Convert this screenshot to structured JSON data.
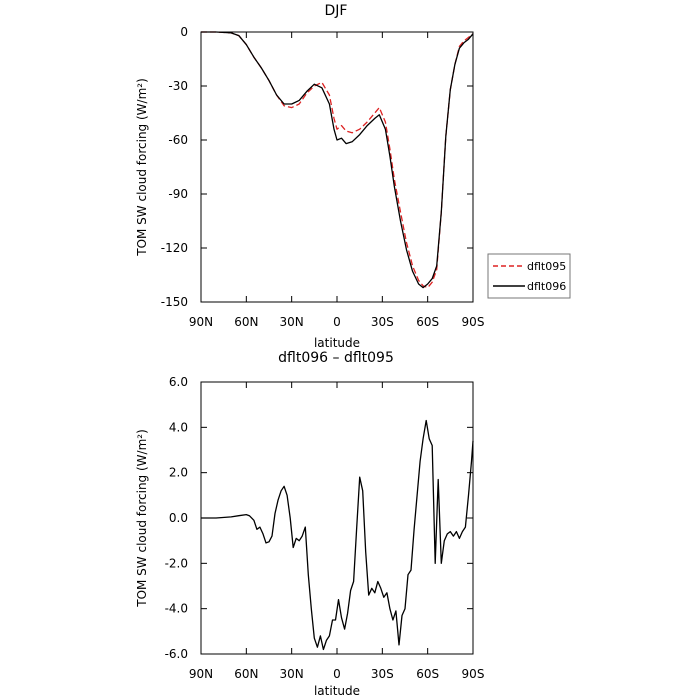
{
  "chart_data": [
    {
      "type": "line",
      "title": "DJF",
      "xlabel": "latitude",
      "ylabel": "TOM SW cloud forcing (W/m²)",
      "xlim": [
        90,
        -90
      ],
      "ylim": [
        -150,
        0
      ],
      "xticks": [
        {
          "value": 90,
          "label": "90N"
        },
        {
          "value": 60,
          "label": "60N"
        },
        {
          "value": 30,
          "label": "30N"
        },
        {
          "value": 0,
          "label": "0"
        },
        {
          "value": -30,
          "label": "30S"
        },
        {
          "value": -60,
          "label": "60S"
        },
        {
          "value": -90,
          "label": "90S"
        }
      ],
      "yticks": [
        {
          "value": 0,
          "label": "0"
        },
        {
          "value": -30,
          "label": "-30"
        },
        {
          "value": -60,
          "label": "-60"
        },
        {
          "value": -90,
          "label": "-90"
        },
        {
          "value": -120,
          "label": "-120"
        },
        {
          "value": -150,
          "label": "-150"
        }
      ],
      "legend": {
        "position": "right",
        "entries": [
          "dflt095",
          "dflt096"
        ]
      },
      "grid": false,
      "series": [
        {
          "name": "dflt095",
          "color": "#dd2222",
          "dash": "dashed",
          "x": [
            90,
            80,
            70,
            65,
            60,
            55,
            50,
            45,
            40,
            35,
            30,
            25,
            20,
            15,
            10,
            5,
            2,
            0,
            -3,
            -6,
            -10,
            -15,
            -20,
            -25,
            -28,
            -32,
            -35,
            -38,
            -42,
            -46,
            -50,
            -54,
            -57,
            -60,
            -63,
            -66,
            -69,
            -72,
            -75,
            -78,
            -81,
            -84,
            -87,
            -90
          ],
          "y": [
            0,
            0,
            -0.5,
            -2,
            -7,
            -14,
            -20,
            -27,
            -35,
            -41,
            -42,
            -40,
            -34,
            -30,
            -28,
            -35,
            -48,
            -54,
            -52,
            -55,
            -56,
            -54,
            -50,
            -45,
            -42,
            -50,
            -65,
            -82,
            -100,
            -117,
            -130,
            -138,
            -141,
            -142,
            -139,
            -132,
            -100,
            -58,
            -32,
            -18,
            -8,
            -5,
            -3,
            -1
          ]
        },
        {
          "name": "dflt096",
          "color": "#000000",
          "dash": "solid",
          "x": [
            90,
            80,
            70,
            65,
            60,
            55,
            50,
            45,
            40,
            35,
            30,
            25,
            20,
            15,
            10,
            5,
            2,
            0,
            -3,
            -6,
            -10,
            -15,
            -20,
            -25,
            -28,
            -32,
            -35,
            -38,
            -42,
            -46,
            -50,
            -54,
            -57,
            -60,
            -63,
            -66,
            -69,
            -72,
            -75,
            -78,
            -81,
            -84,
            -87,
            -90
          ],
          "y": [
            0,
            0,
            -0.5,
            -2,
            -7,
            -14,
            -20,
            -27,
            -35,
            -40,
            -40,
            -38,
            -33,
            -29,
            -31,
            -40,
            -54,
            -60,
            -59,
            -62,
            -61,
            -57,
            -52,
            -48,
            -46,
            -54,
            -69,
            -86,
            -105,
            -121,
            -133,
            -140,
            -142,
            -140,
            -137,
            -130,
            -100,
            -58,
            -32,
            -18,
            -9,
            -6,
            -4,
            -1
          ]
        }
      ]
    },
    {
      "type": "line",
      "title": "dflt096 – dflt095",
      "xlabel": "latitude",
      "ylabel": "TOM SW cloud forcing (W/m²)",
      "xlim": [
        90,
        -90
      ],
      "ylim": [
        -6,
        6
      ],
      "xticks": [
        {
          "value": 90,
          "label": "90N"
        },
        {
          "value": 60,
          "label": "60N"
        },
        {
          "value": 30,
          "label": "30N"
        },
        {
          "value": 0,
          "label": "0"
        },
        {
          "value": -30,
          "label": "30S"
        },
        {
          "value": -60,
          "label": "60S"
        },
        {
          "value": -90,
          "label": "90S"
        }
      ],
      "yticks": [
        {
          "value": 6,
          "label": "6.0"
        },
        {
          "value": 4,
          "label": "4.0"
        },
        {
          "value": 2,
          "label": "2.0"
        },
        {
          "value": 0,
          "label": "0.0"
        },
        {
          "value": -2,
          "label": "-2.0"
        },
        {
          "value": -4,
          "label": "-4.0"
        },
        {
          "value": -6,
          "label": "-6.0"
        }
      ],
      "grid": false,
      "series": [
        {
          "name": "",
          "color": "#000000",
          "dash": "solid",
          "x": [
            90,
            80,
            70,
            65,
            60,
            58,
            55,
            53,
            51,
            49,
            47,
            45,
            43,
            41,
            39,
            37,
            35,
            33,
            31,
            29,
            27,
            25,
            23,
            21,
            19,
            17,
            15,
            13,
            11,
            9,
            7,
            5,
            3,
            1,
            -1,
            -3,
            -5,
            -7,
            -9,
            -11,
            -13,
            -15,
            -17,
            -19,
            -21,
            -23,
            -25,
            -27,
            -29,
            -31,
            -33,
            -35,
            -37,
            -39,
            -41,
            -43,
            -45,
            -47,
            -49,
            -51,
            -53,
            -55,
            -57,
            -59,
            -61,
            -63,
            -65,
            -67,
            -69,
            -71,
            -73,
            -75,
            -77,
            -79,
            -81,
            -83,
            -85,
            -87,
            -89,
            -90
          ],
          "y": [
            0,
            0,
            0.05,
            0.1,
            0.15,
            0.1,
            -0.1,
            -0.5,
            -0.4,
            -0.7,
            -1.1,
            -1.05,
            -0.8,
            0.2,
            0.8,
            1.2,
            1.4,
            1.0,
            0.0,
            -1.3,
            -0.9,
            -1.0,
            -0.8,
            -0.4,
            -2.5,
            -4.0,
            -5.3,
            -5.7,
            -5.2,
            -5.8,
            -5.4,
            -5.2,
            -4.5,
            -4.5,
            -3.6,
            -4.4,
            -4.9,
            -4.2,
            -3.2,
            -2.8,
            -0.5,
            1.8,
            1.2,
            -1.5,
            -3.4,
            -3.1,
            -3.3,
            -2.8,
            -3.1,
            -3.5,
            -3.3,
            -4.0,
            -4.5,
            -4.1,
            -5.6,
            -4.3,
            -4.0,
            -2.5,
            -2.3,
            -0.5,
            1.0,
            2.5,
            3.5,
            4.3,
            3.5,
            3.2,
            -2.0,
            1.7,
            -2.0,
            -1.0,
            -0.7,
            -0.6,
            -0.8,
            -0.6,
            -0.9,
            -0.6,
            -0.4,
            1.0,
            2.5,
            3.4
          ]
        }
      ]
    }
  ]
}
